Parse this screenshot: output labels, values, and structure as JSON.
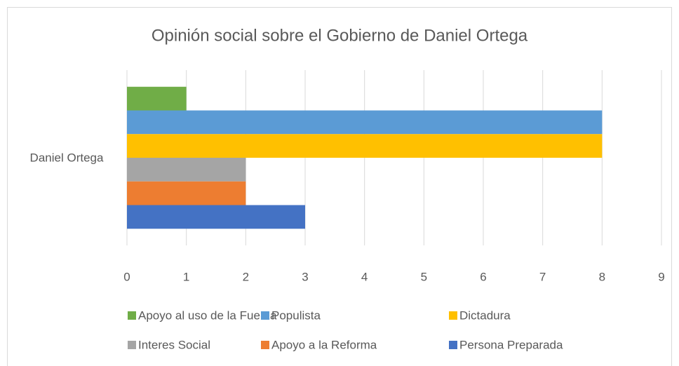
{
  "chart_data": {
    "type": "bar",
    "orientation": "horizontal",
    "title": "Opinión social sobre el Gobierno de Daniel Ortega",
    "categories": [
      "Daniel Ortega"
    ],
    "series": [
      {
        "name": "Apoyo al uso de la Fuerza",
        "color": "#70ad47",
        "values": [
          1
        ]
      },
      {
        "name": "Populista",
        "color": "#5b9bd5",
        "values": [
          8
        ]
      },
      {
        "name": "Dictadura",
        "color": "#ffc000",
        "values": [
          8
        ]
      },
      {
        "name": "Interes Social",
        "color": "#a5a5a5",
        "values": [
          2
        ]
      },
      {
        "name": "Apoyo a la Reforma",
        "color": "#ed7d31",
        "values": [
          2
        ]
      },
      {
        "name": "Persona Preparada",
        "color": "#4472c4",
        "values": [
          3
        ]
      }
    ],
    "xlim": [
      0,
      9
    ],
    "xticks": [
      0,
      1,
      2,
      3,
      4,
      5,
      6,
      7,
      8,
      9
    ],
    "grid": true,
    "legend": "bottom"
  }
}
